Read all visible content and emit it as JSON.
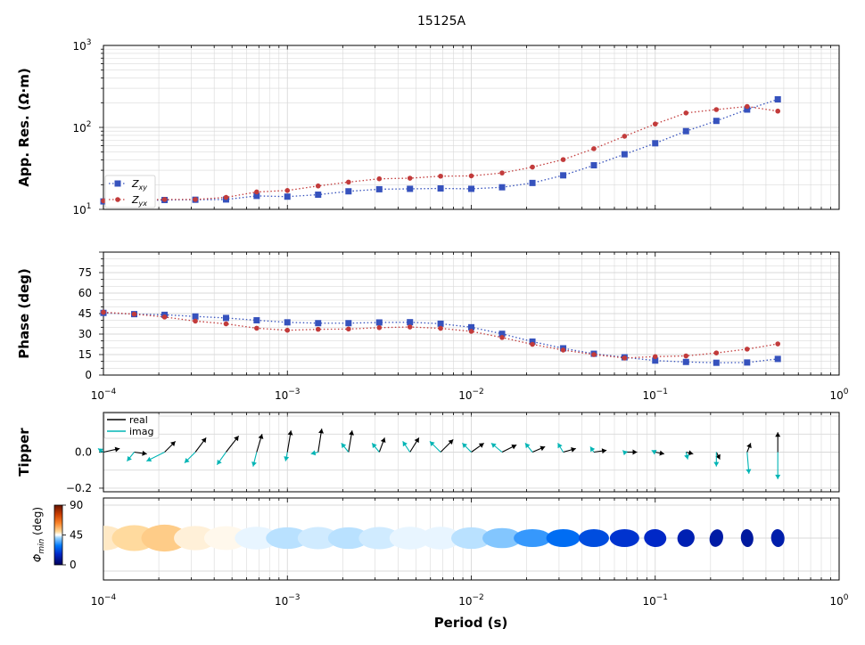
{
  "figure": {
    "title": "15125A",
    "xlabel": "Period (s)"
  },
  "colors": {
    "zxy": "#3652bd",
    "zyx": "#c23b3b",
    "tipper_real": "#000000",
    "tipper_imag": "#00b5b5",
    "grid": "#d9d9d9"
  },
  "chart_data": [
    {
      "id": "resistivity",
      "type": "scatter",
      "ylabel": "App. Res. (Ω·m)",
      "xscale": "log",
      "yscale": "log",
      "xlim": [
        0.0001,
        1
      ],
      "ylim": [
        10,
        1000
      ],
      "yticks": [
        {
          "v": 10,
          "exp": "1"
        },
        {
          "v": 100,
          "exp": "2"
        },
        {
          "v": 1000,
          "exp": "3"
        }
      ],
      "grid": true,
      "legend": {
        "placement": "lower-left",
        "entries": [
          {
            "base": "Z",
            "sub": "xy"
          },
          {
            "base": "Z",
            "sub": "yx"
          }
        ]
      },
      "x": [
        0.0001,
        0.000147,
        0.000215,
        0.000316,
        0.000464,
        0.000681,
        0.001,
        0.00147,
        0.00215,
        0.00316,
        0.00464,
        0.00681,
        0.01,
        0.0147,
        0.0215,
        0.0316,
        0.0464,
        0.0681,
        0.1,
        0.147,
        0.215,
        0.316,
        0.464
      ],
      "series": [
        {
          "name": "Zxy",
          "marker": "square",
          "values": [
            12.5,
            12.8,
            13.0,
            13.1,
            13.2,
            14.6,
            14.3,
            15.1,
            16.6,
            17.6,
            17.8,
            18.0,
            17.8,
            18.6,
            21.0,
            26.0,
            34.5,
            47.0,
            64.0,
            90.0,
            120.0,
            165.0,
            220.0
          ]
        },
        {
          "name": "Zyx",
          "marker": "circle",
          "values": [
            12.7,
            13.0,
            13.2,
            13.2,
            14.0,
            16.3,
            17.0,
            19.3,
            21.5,
            23.6,
            24.0,
            25.4,
            25.6,
            27.8,
            32.8,
            40.5,
            55.0,
            78.0,
            110.0,
            150.0,
            165.0,
            180.0,
            158.0
          ]
        }
      ]
    },
    {
      "id": "phase",
      "type": "scatter",
      "ylabel": "Phase (deg)",
      "xscale": "log",
      "xlim": [
        0.0001,
        1
      ],
      "ylim": [
        0,
        90
      ],
      "yticks": [
        0,
        15,
        30,
        45,
        60,
        75
      ],
      "xticks": [
        {
          "v": 0.0001,
          "exp": "−4"
        },
        {
          "v": 0.001,
          "exp": "−3"
        },
        {
          "v": 0.01,
          "exp": "−2"
        },
        {
          "v": 0.1,
          "exp": "−1"
        },
        {
          "v": 1,
          "exp": "0"
        }
      ],
      "grid": true,
      "x": [
        0.0001,
        0.000147,
        0.000215,
        0.000316,
        0.000464,
        0.000681,
        0.001,
        0.00147,
        0.00215,
        0.00316,
        0.00464,
        0.00681,
        0.01,
        0.0147,
        0.0215,
        0.0316,
        0.0464,
        0.0681,
        0.1,
        0.147,
        0.215,
        0.316,
        0.464
      ],
      "series": [
        {
          "name": "Zxy",
          "marker": "square",
          "values": [
            45.5,
            44.6,
            44.1,
            42.9,
            41.8,
            40.1,
            38.6,
            38.0,
            38.0,
            38.5,
            38.7,
            37.6,
            35.0,
            30.2,
            24.5,
            19.6,
            15.6,
            13.0,
            10.6,
            9.6,
            9.0,
            9.2,
            11.8
          ]
        },
        {
          "name": "Zyx",
          "marker": "circle",
          "values": [
            46.0,
            44.6,
            42.5,
            39.5,
            37.5,
            34.3,
            32.8,
            33.5,
            33.7,
            34.7,
            35.2,
            34.2,
            32.0,
            27.5,
            22.5,
            18.3,
            15.0,
            12.5,
            13.5,
            14.0,
            16.2,
            19.0,
            22.8
          ]
        }
      ]
    },
    {
      "id": "tipper",
      "type": "scatter",
      "ylabel": "Tipper",
      "xscale": "log",
      "xlim": [
        0.0001,
        1
      ],
      "ylim": [
        -0.22,
        0.22
      ],
      "yticks": [
        {
          "v": 0.0,
          "label": "0.0"
        },
        {
          "v": -0.2,
          "label": "−0.2"
        }
      ],
      "grid": true,
      "legend": {
        "placement": "top-left",
        "entries": [
          "real",
          "imag"
        ]
      },
      "x": [
        0.0001,
        0.000147,
        0.000215,
        0.000316,
        0.000464,
        0.000681,
        0.001,
        0.00147,
        0.00215,
        0.00316,
        0.00464,
        0.00681,
        0.01,
        0.0147,
        0.0215,
        0.0316,
        0.0464,
        0.0681,
        0.1,
        0.147,
        0.215,
        0.316,
        0.464
      ],
      "real": [
        [
          0.09,
          0.02
        ],
        [
          0.07,
          -0.01
        ],
        [
          0.06,
          0.06
        ],
        [
          0.06,
          0.08
        ],
        [
          0.07,
          0.09
        ],
        [
          0.03,
          0.1
        ],
        [
          0.02,
          0.12
        ],
        [
          0.02,
          0.13
        ],
        [
          0.02,
          0.12
        ],
        [
          0.03,
          0.08
        ],
        [
          0.05,
          0.08
        ],
        [
          0.07,
          0.07
        ],
        [
          0.07,
          0.05
        ],
        [
          0.08,
          0.04
        ],
        [
          0.07,
          0.03
        ],
        [
          0.07,
          0.02
        ],
        [
          0.07,
          0.01
        ],
        [
          0.07,
          0.0
        ],
        [
          0.05,
          -0.01
        ],
        [
          0.04,
          -0.01
        ],
        [
          0.02,
          -0.04
        ],
        [
          0.02,
          0.05
        ],
        [
          0.0,
          0.11
        ]
      ],
      "imag": [
        [
          -0.03,
          0.02
        ],
        [
          -0.04,
          -0.05
        ],
        [
          -0.1,
          -0.05
        ],
        [
          -0.06,
          -0.06
        ],
        [
          -0.05,
          -0.07
        ],
        [
          -0.02,
          -0.08
        ],
        [
          -0.01,
          -0.05
        ],
        [
          -0.04,
          -0.01
        ],
        [
          -0.04,
          0.05
        ],
        [
          -0.04,
          0.05
        ],
        [
          -0.04,
          0.06
        ],
        [
          -0.06,
          0.06
        ],
        [
          -0.05,
          0.05
        ],
        [
          -0.06,
          0.05
        ],
        [
          -0.04,
          0.05
        ],
        [
          -0.03,
          0.05
        ],
        [
          -0.02,
          0.03
        ],
        [
          -0.01,
          0.01
        ],
        [
          -0.02,
          0.01
        ],
        [
          0.01,
          -0.04
        ],
        [
          0.0,
          -0.08
        ],
        [
          0.01,
          -0.12
        ],
        [
          0.0,
          -0.15
        ]
      ]
    },
    {
      "id": "phase-tensor",
      "type": "scatter",
      "colorbar_label": "Φmin (deg)",
      "colorbar_ticks": [
        0,
        45,
        90
      ],
      "xscale": "log",
      "xlim": [
        0.0001,
        1
      ],
      "xticks": [
        {
          "v": 0.0001,
          "exp": "−4"
        },
        {
          "v": 0.001,
          "exp": "−3"
        },
        {
          "v": 0.01,
          "exp": "−2"
        },
        {
          "v": 0.1,
          "exp": "−1"
        },
        {
          "v": 1,
          "exp": "0"
        }
      ],
      "x": [
        0.0001,
        0.000147,
        0.000215,
        0.000316,
        0.000464,
        0.000681,
        0.001,
        0.00147,
        0.00215,
        0.00316,
        0.00464,
        0.00681,
        0.01,
        0.0147,
        0.0215,
        0.0316,
        0.0464,
        0.0681,
        0.1,
        0.147,
        0.215,
        0.316,
        0.464
      ],
      "phimin": [
        48,
        50,
        52,
        47,
        46,
        44,
        42,
        43,
        42,
        43,
        44,
        44,
        42,
        39,
        33,
        27,
        22,
        18,
        16,
        13,
        11,
        10,
        12
      ],
      "phimax": [
        48,
        50,
        52,
        48,
        49,
        49,
        48,
        46,
        46,
        46,
        46,
        45,
        45,
        44,
        42,
        38,
        34,
        33,
        25,
        19,
        15,
        14,
        15
      ],
      "azimuth": [
        0,
        0,
        0,
        0,
        0,
        0,
        0,
        0,
        0,
        0,
        0,
        0,
        0,
        0,
        0,
        0,
        0,
        0,
        5,
        -20,
        -35,
        -55,
        -55
      ]
    }
  ]
}
